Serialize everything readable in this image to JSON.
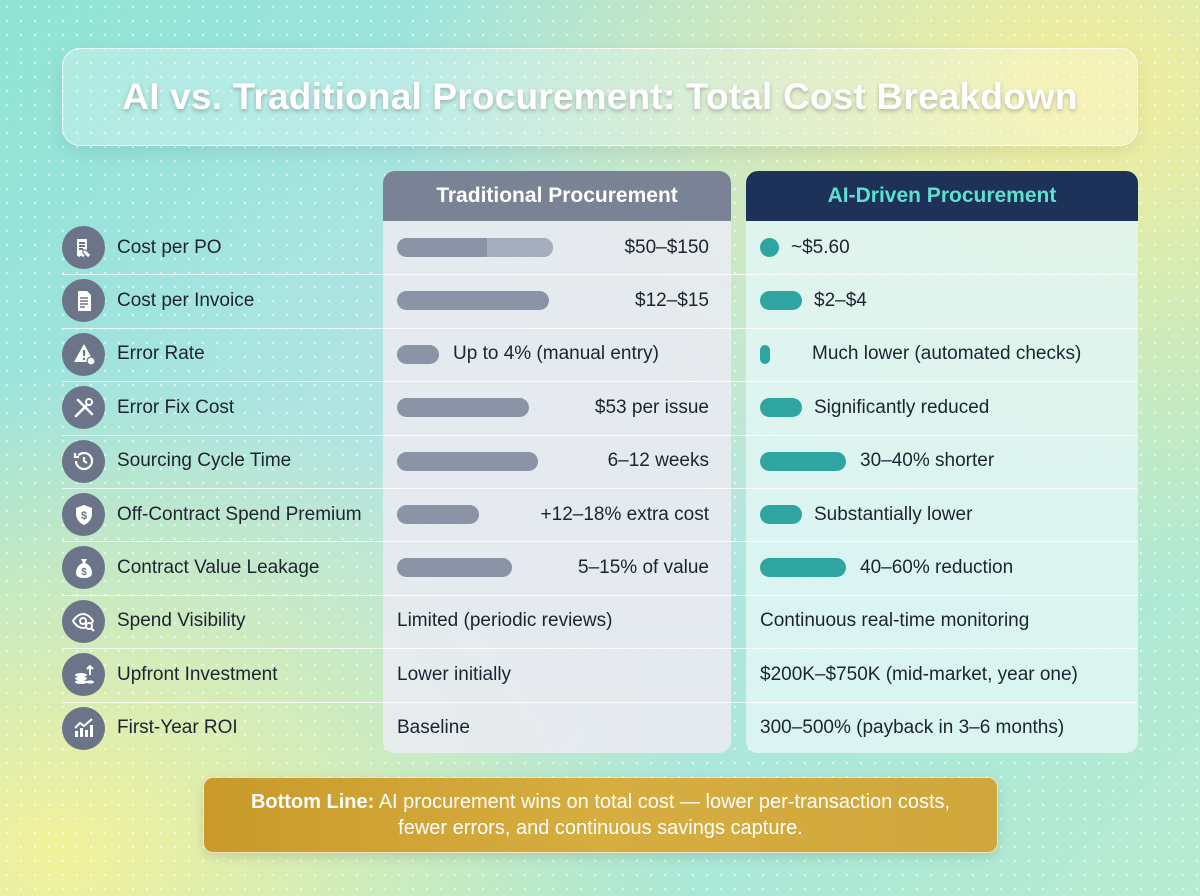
{
  "title": "AI vs. Traditional Procurement: Total Cost Breakdown",
  "columns": {
    "traditional": "Traditional Procurement",
    "ai": "AI-Driven Procurement"
  },
  "rows": [
    {
      "metric": "Cost per PO",
      "icon": "receipt-tag-icon",
      "traditional": "$50–$150",
      "ai": "~$5.60",
      "trad_bar": 0.62,
      "trad_bar_range_start": 0.6,
      "ai_bar": 0.06
    },
    {
      "metric": "Cost per Invoice",
      "icon": "invoice-document-icon",
      "traditional": "$12–$15",
      "ai": "$2–$4",
      "trad_bar": 0.6,
      "ai_bar": 0.13
    },
    {
      "metric": "Error Rate",
      "icon": "warning-icon",
      "traditional": "Up to 4% (manual entry)",
      "ai": "Much lower (automated checks)",
      "trad_bar": 0.1,
      "ai_bar": 0.03
    },
    {
      "metric": "Error Fix Cost",
      "icon": "tools-icon",
      "traditional": "$53 per issue",
      "ai": "Significantly reduced",
      "trad_bar": 0.51,
      "ai_bar": 0.13
    },
    {
      "metric": "Sourcing Cycle Time",
      "icon": "clock-history-icon",
      "traditional": "6–12 weeks",
      "ai": "30–40% shorter",
      "trad_bar": 0.55,
      "ai_bar": 0.27
    },
    {
      "metric": "Off-Contract Spend Premium",
      "icon": "shield-dollar-icon",
      "traditional": "+12–18% extra cost",
      "ai": "Substantially lower",
      "trad_bar": 0.28,
      "ai_bar": 0.13
    },
    {
      "metric": "Contract Value Leakage",
      "icon": "money-bag-icon",
      "traditional": "5–15% of value",
      "ai": "40–60% reduction",
      "trad_bar": 0.43,
      "ai_bar": 0.27
    },
    {
      "metric": "Spend Visibility",
      "icon": "eye-search-icon",
      "traditional": "Limited (periodic reviews)",
      "ai": "Continuous real-time monitoring"
    },
    {
      "metric": "Upfront Investment",
      "icon": "coins-stack-icon",
      "traditional": "Lower initially",
      "ai": "$200K–$750K (mid-market, year one)"
    },
    {
      "metric": "First-Year ROI",
      "icon": "growth-chart-icon",
      "traditional": "Baseline",
      "ai": "300–500% (payback in 3–6 months)"
    }
  ],
  "bottom_line": {
    "label": "Bottom Line:",
    "text": "AI procurement wins on total cost — lower per-transaction costs, fewer errors, and continuous savings capture."
  },
  "colors": {
    "traditional_header": "#7a8396",
    "ai_header": "#1e3158",
    "ai_header_text": "#5fe0cf",
    "traditional_bar": "#8b93a6",
    "ai_bar": "#2ea5a0",
    "bottom_banner": "#d7ad40"
  }
}
